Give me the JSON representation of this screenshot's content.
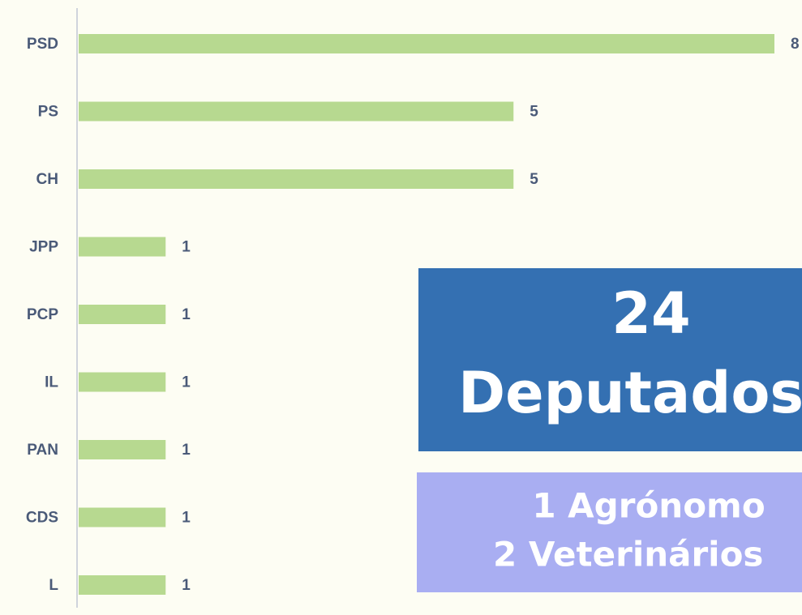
{
  "chart_data": {
    "type": "bar",
    "orientation": "horizontal",
    "categories": [
      "PSD",
      "PS",
      "CH",
      "JPP",
      "PCP",
      "IL",
      "PAN",
      "CDS",
      "L"
    ],
    "values": [
      8,
      5,
      5,
      1,
      1,
      1,
      1,
      1,
      1
    ],
    "color": "#b7d990",
    "xlim": [
      0,
      8
    ],
    "annotations": [
      {
        "lines": [
          "24",
          "Deputados"
        ],
        "color": "#3470b2"
      },
      {
        "lines": [
          "1 Agrónomo",
          "2 Veterinários"
        ],
        "color": "#a9aef2"
      }
    ]
  }
}
